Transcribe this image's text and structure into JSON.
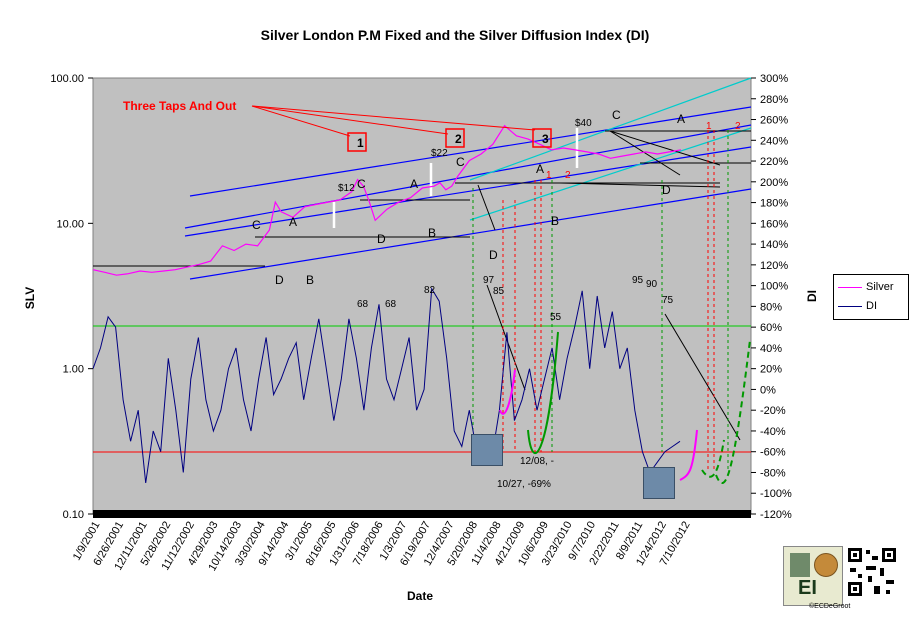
{
  "title": "Silver London P.M Fixed and the Silver Diffusion Index (DI)",
  "xlabel": "Date",
  "ylabel_left": "SLV",
  "ylabel_right": "DI",
  "legend": [
    {
      "label": "Silver",
      "color": "#ff00ff"
    },
    {
      "label": "DI",
      "color": "#000080"
    }
  ],
  "credit": "©ECDeGroot",
  "logo_text": "EI",
  "chart_data": {
    "type": "line",
    "title": "Silver London P.M Fixed and the Silver Diffusion Index (DI)",
    "xlabel": "Date",
    "ylabel": "SLV",
    "y2label": "DI",
    "y_scale": "log",
    "ylim": [
      0.1,
      100
    ],
    "y2lim": [
      -120,
      300
    ],
    "y_ticks": [
      "0.10",
      "1.00",
      "10.00",
      "100.00"
    ],
    "y2_ticks": [
      "-120%",
      "-100%",
      "-80%",
      "-60%",
      "-40%",
      "-20%",
      "0%",
      "20%",
      "40%",
      "60%",
      "80%",
      "100%",
      "120%",
      "140%",
      "160%",
      "180%",
      "200%",
      "220%",
      "240%",
      "260%",
      "280%",
      "300%"
    ],
    "x_ticks": [
      "1/9/2001",
      "6/26/2001",
      "12/11/2001",
      "5/28/2002",
      "11/12/2002",
      "4/29/2003",
      "10/14/2003",
      "3/30/2004",
      "9/14/2004",
      "3/1/2005",
      "8/16/2005",
      "1/31/2006",
      "7/18/2006",
      "1/3/2007",
      "6/19/2007",
      "12/4/2007",
      "5/20/2008",
      "11/4/2008",
      "4/21/2009",
      "10/6/2009",
      "3/23/2010",
      "9/7/2010",
      "2/22/2011",
      "8/9/2011",
      "1/24/2012",
      "7/10/2012"
    ],
    "grid": false,
    "legend_position": "right",
    "series": [
      {
        "name": "Silver",
        "color": "#ff00ff",
        "axis": "left",
        "x": [
          0,
          2,
          4,
          6,
          8,
          10,
          12,
          14,
          16,
          18,
          20,
          22,
          24,
          26,
          28,
          30,
          31,
          32,
          33,
          34,
          36,
          38,
          40,
          42,
          44,
          45,
          46,
          47,
          48,
          50,
          52,
          54,
          56,
          58,
          59,
          60,
          61,
          62,
          64,
          66,
          68,
          70,
          72,
          74,
          76,
          78,
          80,
          82,
          84,
          86,
          88,
          90,
          92,
          94,
          96,
          98,
          100
        ],
        "values": [
          4.8,
          4.6,
          4.4,
          4.5,
          4.7,
          4.6,
          4.7,
          4.8,
          5.0,
          5.2,
          5.5,
          7.0,
          6.5,
          7.2,
          7.0,
          9.0,
          14.0,
          12.0,
          11.5,
          11.0,
          13.0,
          13.5,
          14.0,
          14.5,
          16.5,
          20.0,
          18.0,
          14.0,
          10.5,
          12.5,
          14.0,
          15.0,
          17.5,
          18.0,
          19.0,
          17.0,
          18.0,
          21.0,
          27.0,
          30.0,
          35.0,
          47.0,
          40.0,
          38.0,
          35.0,
          32.0,
          33.0,
          32.0,
          31.0,
          30.0,
          28.0,
          29.0,
          30.0,
          31.0,
          30.0,
          31.0,
          32.0
        ]
      },
      {
        "name": "DI",
        "color": "#000080",
        "axis": "right",
        "x": [
          0,
          1,
          2,
          3,
          4,
          5,
          6,
          7,
          8,
          9,
          10,
          11,
          12,
          13,
          14,
          15,
          16,
          17,
          18,
          19,
          20,
          21,
          22,
          23,
          24,
          25,
          26,
          27,
          28,
          29,
          30,
          31,
          32,
          33,
          34,
          35,
          36,
          37,
          38,
          39,
          40,
          41,
          42,
          43,
          44,
          45,
          46,
          47,
          48,
          49,
          50,
          51,
          52,
          53,
          54,
          55,
          56,
          57,
          58,
          59,
          60,
          61,
          62,
          63,
          64,
          65,
          66,
          67,
          68,
          69,
          70,
          71,
          72,
          73,
          74,
          75,
          76,
          77,
          78
        ],
        "values": [
          20,
          40,
          70,
          60,
          -10,
          -50,
          -20,
          -90,
          -40,
          -60,
          30,
          -20,
          -80,
          10,
          50,
          -10,
          -40,
          -20,
          20,
          40,
          -10,
          -40,
          10,
          50,
          -5,
          10,
          30,
          45,
          -10,
          30,
          68,
          20,
          -30,
          10,
          68,
          30,
          -20,
          40,
          82,
          10,
          -10,
          20,
          50,
          -20,
          0,
          97,
          85,
          30,
          -40,
          -55,
          -20,
          -60,
          -62,
          -65,
          -20,
          55,
          -30,
          -10,
          20,
          -20,
          10,
          40,
          -10,
          30,
          60,
          95,
          20,
          90,
          40,
          75,
          20,
          40,
          -20,
          -60,
          -80,
          -70,
          -60,
          -55,
          -50
        ]
      }
    ],
    "annotations": [
      "Three Taps And Out",
      "1",
      "2",
      "3",
      "$12",
      "$22",
      "$40",
      "C",
      "A",
      "C",
      "A",
      "C",
      "A",
      "C",
      "D",
      "B",
      "D",
      "B",
      "A",
      "D",
      "B",
      "D",
      "97",
      "85",
      "55",
      "95",
      "90",
      "75",
      "68",
      "68",
      "82",
      "12/08, -",
      "10/27, -69%",
      "1",
      "2",
      "1",
      "2"
    ]
  }
}
